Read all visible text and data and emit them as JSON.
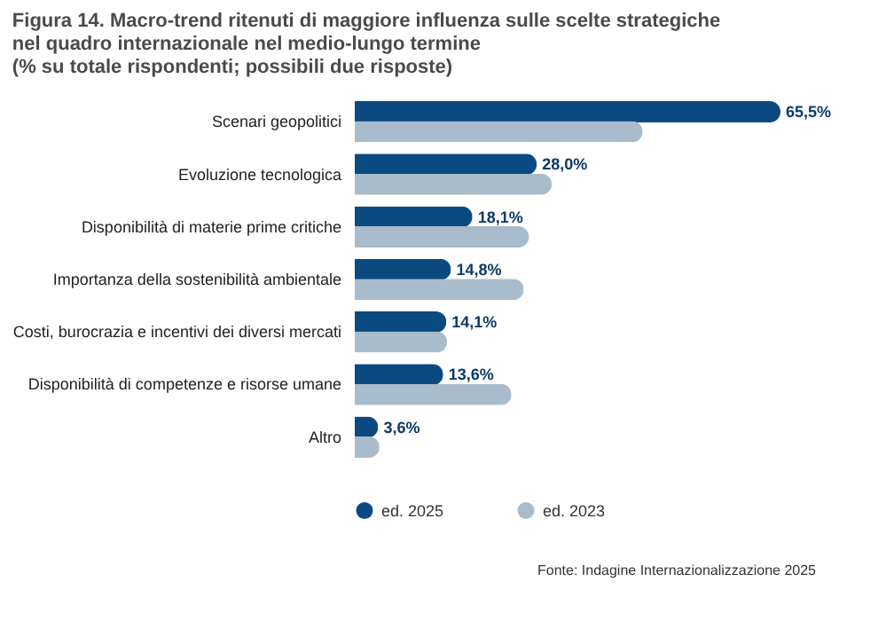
{
  "chart_data": {
    "type": "bar",
    "orientation": "horizontal",
    "title": [
      "Figura 14. Macro-trend ritenuti di maggiore influenza sulle scelte strategiche",
      "nel quadro internazionale nel medio-lungo termine",
      "(% su totale rispondenti; possibili due risposte)"
    ],
    "categories": [
      "Scenari geopolitici",
      "Evoluzione tecnologica",
      "Disponibilità di materie prime critiche",
      "Importanza della sostenibilità ambientale",
      "Costi, burocrazia e incentivi dei diversi mercati",
      "Disponibilità di competenze e risorse umane",
      "Altro"
    ],
    "series": [
      {
        "name": "ed. 2025",
        "color": "#0b4a80",
        "values": [
          65.5,
          28.0,
          18.1,
          14.8,
          14.1,
          13.6,
          3.6
        ],
        "value_labels": [
          "65,5%",
          "28,0%",
          "18,1%",
          "14,8%",
          "14,1%",
          "13,6%",
          "3,6%"
        ]
      },
      {
        "name": "ed. 2023",
        "color": "#a9bccb",
        "values": [
          44.3,
          30.3,
          26.8,
          26.0,
          14.2,
          24.1,
          3.8
        ]
      }
    ],
    "tick_labels": "y",
    "grid": false,
    "legend": "bottom",
    "annotations": [
      "Fonte: Indagine Internazionalizzazione 2025"
    ]
  }
}
